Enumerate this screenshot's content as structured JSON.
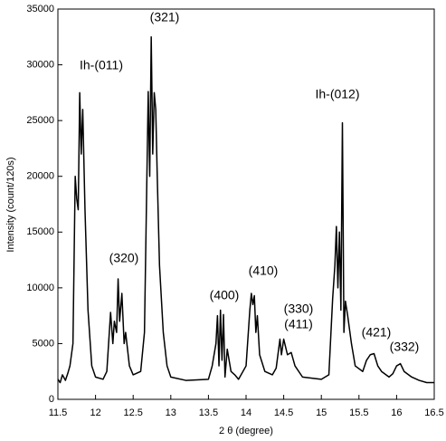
{
  "chart_data": {
    "type": "line",
    "xlabel": "2 θ  (degree)",
    "ylabel": "Intensity (count/120s)",
    "xlim": [
      11.5,
      16.5
    ],
    "ylim": [
      0,
      35000
    ],
    "xticks": [
      11.5,
      12,
      12.5,
      13,
      13.5,
      14,
      14.5,
      15,
      15.5,
      16,
      16.5
    ],
    "yticks": [
      0,
      5000,
      10000,
      15000,
      20000,
      25000,
      30000,
      35000
    ],
    "grid": false,
    "annotations": [
      "Ih-(011)",
      "(321)",
      "(320)",
      "(400)",
      "(410)",
      "(330)",
      "(411)",
      "Ih-(012)",
      "(421)",
      "(332)"
    ],
    "x": [
      11.5,
      11.53,
      11.56,
      11.6,
      11.63,
      11.66,
      11.7,
      11.73,
      11.75,
      11.77,
      11.79,
      11.81,
      11.83,
      11.86,
      11.9,
      11.95,
      12.0,
      12.1,
      12.15,
      12.2,
      12.23,
      12.25,
      12.28,
      12.3,
      12.32,
      12.35,
      12.38,
      12.4,
      12.45,
      12.5,
      12.6,
      12.65,
      12.7,
      12.72,
      12.74,
      12.76,
      12.78,
      12.8,
      12.82,
      12.85,
      12.9,
      12.95,
      13.0,
      13.2,
      13.5,
      13.55,
      13.6,
      13.62,
      13.64,
      13.66,
      13.68,
      13.7,
      13.72,
      13.75,
      13.8,
      13.85,
      13.9,
      14.0,
      14.05,
      14.07,
      14.09,
      14.11,
      14.13,
      14.15,
      14.18,
      14.25,
      14.35,
      14.4,
      14.45,
      14.47,
      14.5,
      14.55,
      14.6,
      14.65,
      14.75,
      15.0,
      15.1,
      15.15,
      15.18,
      15.2,
      15.22,
      15.24,
      15.26,
      15.28,
      15.3,
      15.32,
      15.35,
      15.4,
      15.45,
      15.55,
      15.6,
      15.65,
      15.7,
      15.75,
      15.8,
      15.9,
      15.95,
      16.0,
      16.05,
      16.1,
      16.2,
      16.3,
      16.4,
      16.5
    ],
    "series": [
      {
        "name": null,
        "color": "#000000",
        "values": [
          1800,
          1500,
          2200,
          1700,
          2300,
          3000,
          5000,
          20000,
          18000,
          17000,
          27500,
          22000,
          26000,
          17000,
          8000,
          3000,
          2000,
          1800,
          2500,
          7800,
          5000,
          7000,
          6000,
          10800,
          7000,
          9500,
          5000,
          6000,
          3000,
          2200,
          2500,
          6000,
          27600,
          20000,
          32500,
          22000,
          27500,
          26000,
          20000,
          12000,
          6000,
          3000,
          2000,
          1700,
          1800,
          3000,
          5000,
          7500,
          3000,
          8000,
          3500,
          7600,
          2000,
          4500,
          2500,
          2200,
          1800,
          3000,
          8000,
          9500,
          8500,
          9300,
          6000,
          7500,
          4000,
          2500,
          2200,
          2800,
          5400,
          4000,
          5400,
          4000,
          4200,
          3000,
          2000,
          1800,
          2200,
          9000,
          12000,
          15500,
          10000,
          15000,
          8000,
          24800,
          6000,
          8800,
          7500,
          5000,
          3000,
          2500,
          3500,
          4000,
          4100,
          3000,
          2500,
          2000,
          2300,
          3000,
          3200,
          2500,
          2000,
          1700,
          1500,
          1500
        ]
      }
    ]
  }
}
